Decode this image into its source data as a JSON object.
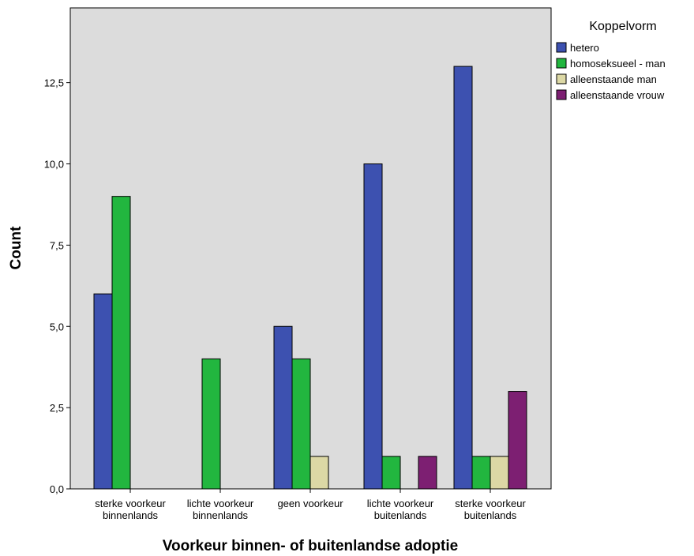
{
  "chart_data": {
    "type": "bar",
    "xlabel": "Voorkeur binnen- of buitenlandse adoptie",
    "ylabel": "Count",
    "ylim": [
      0,
      14.8
    ],
    "yticks": [
      "0,0",
      "2,5",
      "5,0",
      "7,5",
      "10,0",
      "12,5"
    ],
    "ytick_values": [
      0,
      2.5,
      5,
      7.5,
      10,
      12.5
    ],
    "categories": [
      [
        "sterke voorkeur",
        "binnenlands"
      ],
      [
        "lichte voorkeur",
        "binnenlands"
      ],
      [
        "geen voorkeur"
      ],
      [
        "lichte voorkeur",
        "buitenlands"
      ],
      [
        "sterke voorkeur",
        "buitenlands"
      ]
    ],
    "legend_title": "Koppelvorm",
    "legend_position": "right",
    "grid": false,
    "series": [
      {
        "name": "hetero",
        "color": "#3d51b0",
        "values": [
          6,
          0,
          5,
          10,
          13
        ]
      },
      {
        "name": "homoseksueel - man",
        "color": "#22b63f",
        "values": [
          9,
          4,
          4,
          1,
          1
        ]
      },
      {
        "name": "alleenstaande man",
        "color": "#dcd8a5",
        "values": [
          0,
          0,
          1,
          0,
          1
        ]
      },
      {
        "name": "alleenstaande vrouw",
        "color": "#7d1f72",
        "values": [
          0,
          0,
          0,
          1,
          3
        ]
      }
    ],
    "plot_background": "#dcdcdc"
  }
}
